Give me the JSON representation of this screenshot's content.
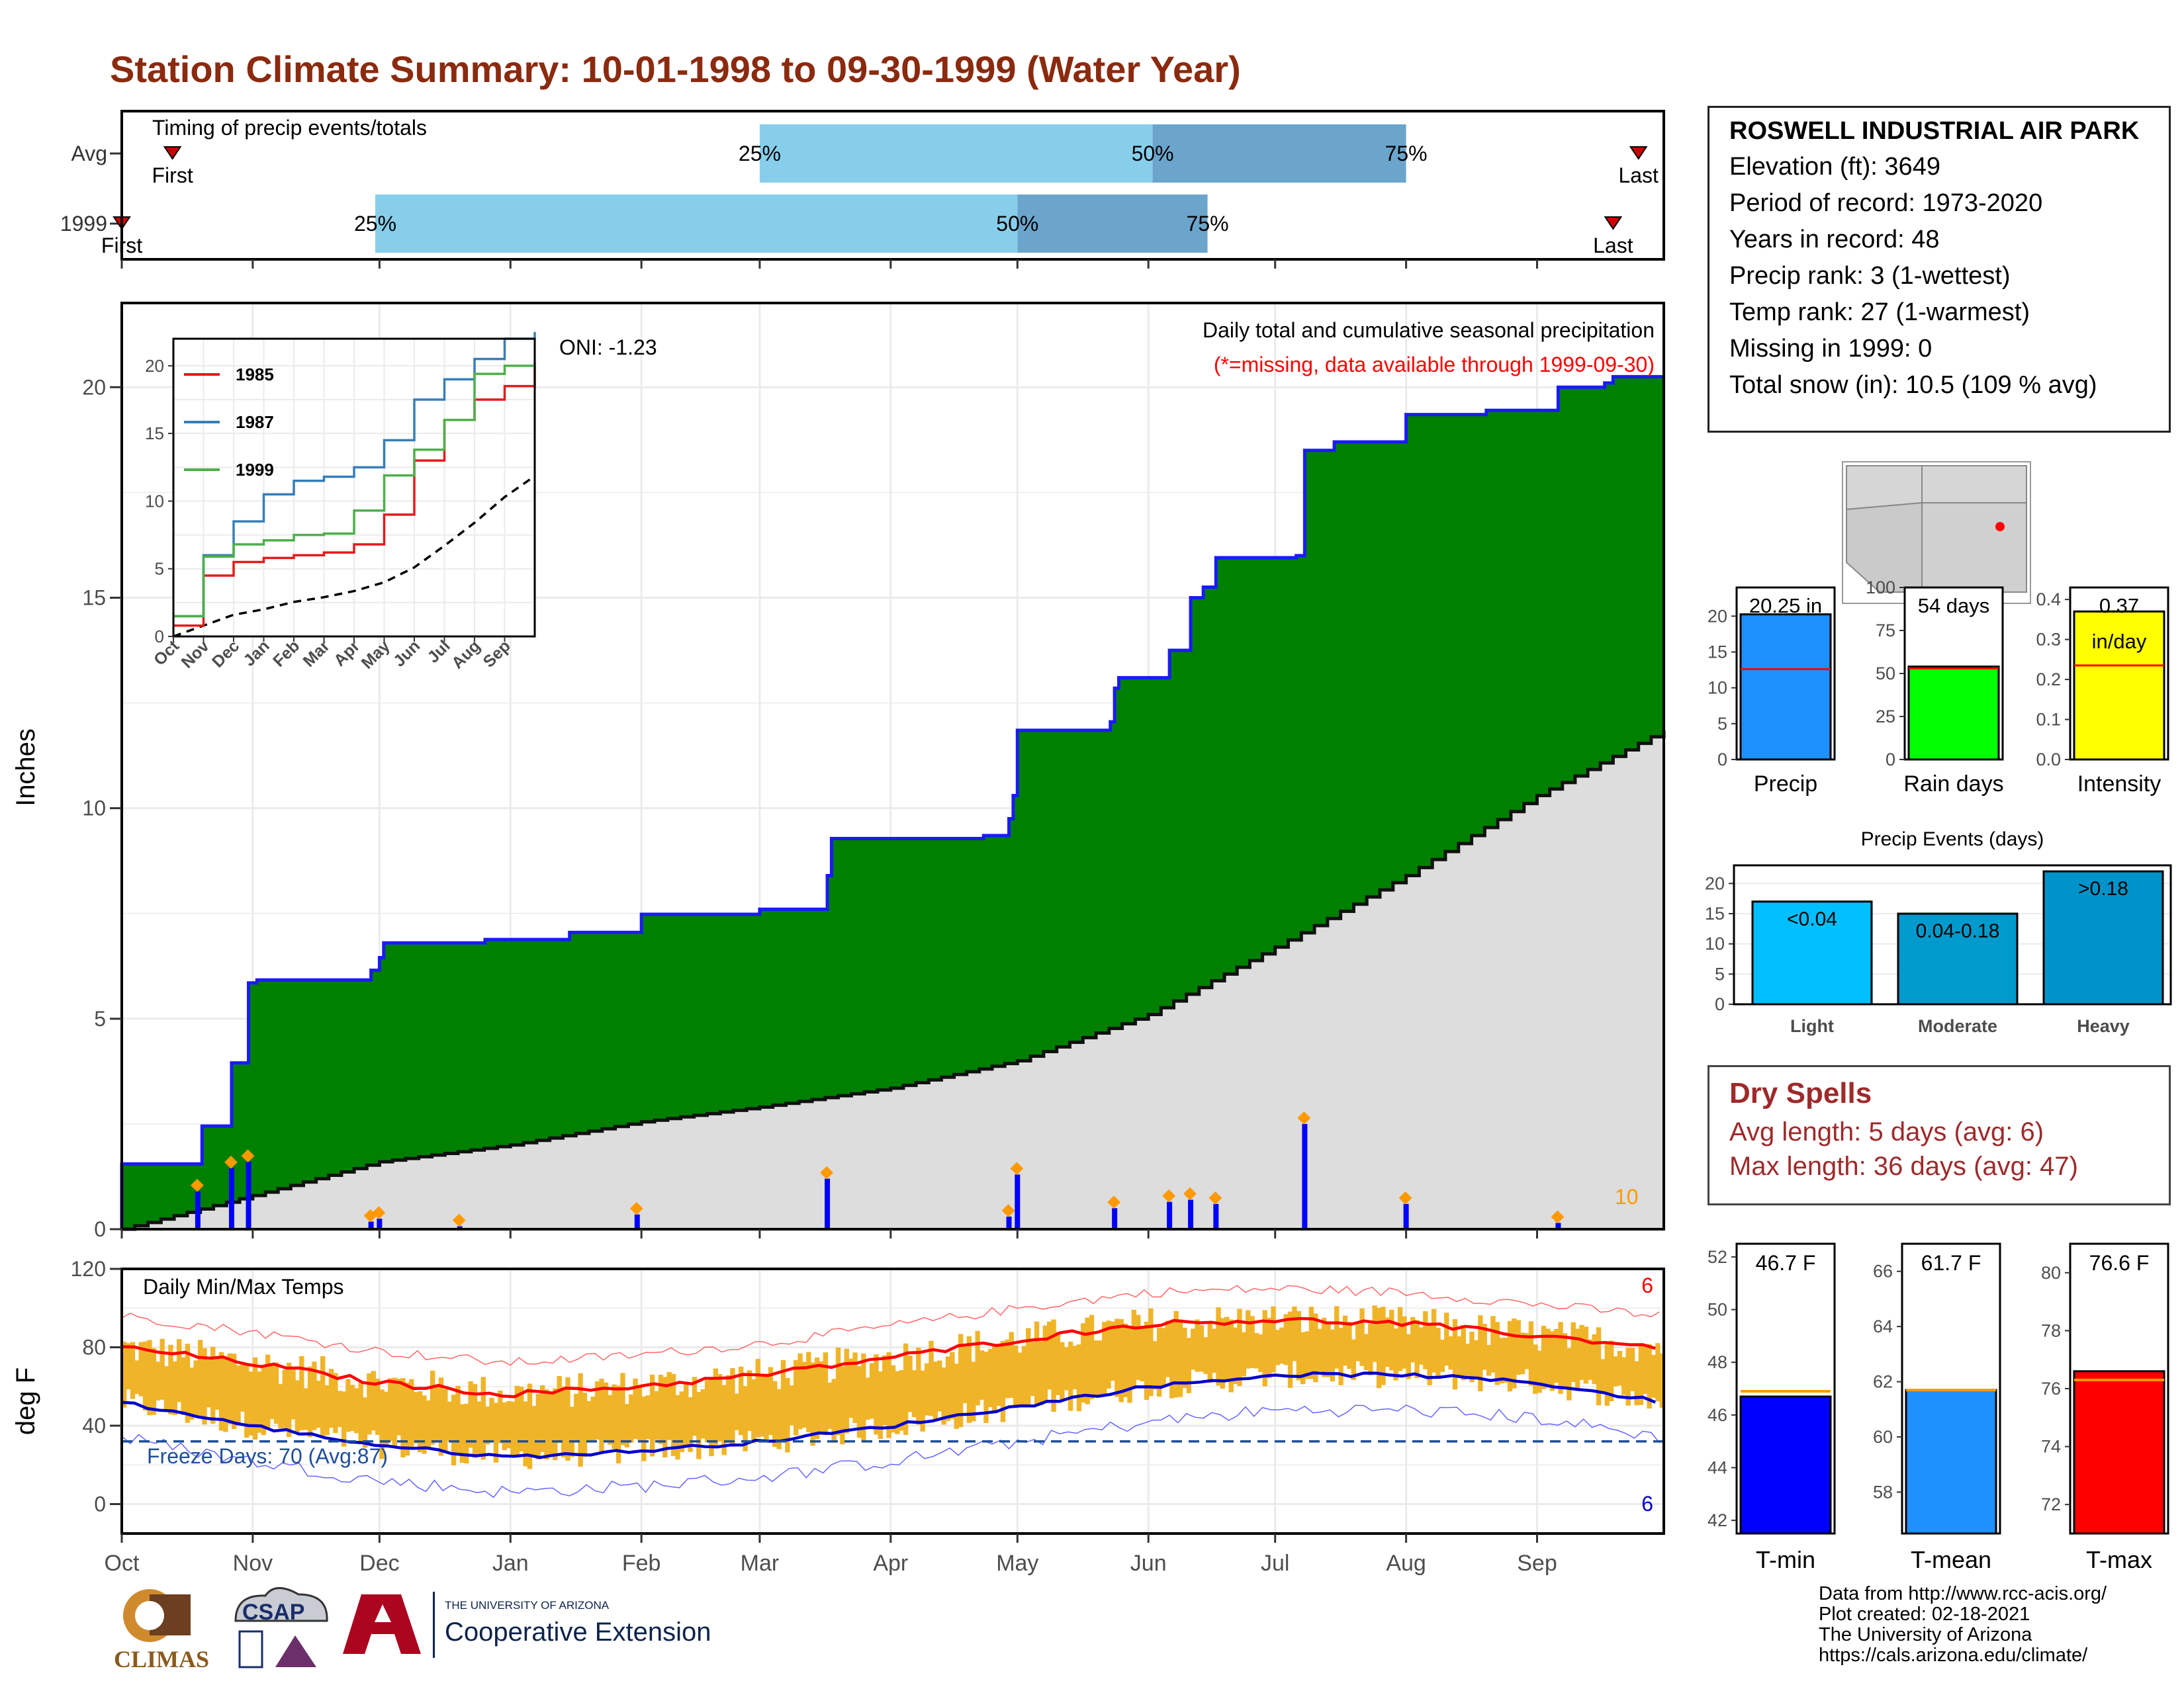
{
  "title": "Station Climate Summary: 10-01-1998 to 09-30-1999 (Water Year)",
  "station": {
    "name": "ROSWELL INDUSTRIAL AIR PARK",
    "elevation": "Elevation (ft): 3649",
    "period": "Period of record: 1973-2020",
    "years": "Years in record: 48",
    "precip_rank": "Precip rank: 3 (1-wettest)",
    "temp_rank": "Temp rank: 27 (1-warmest)",
    "missing": "Missing in 1999: 0",
    "snow": "Total snow (in): 10.5 (109 % avg)"
  },
  "dry_spells": {
    "title": "Dry Spells",
    "avg": "Avg length: 5 days (avg: 6)",
    "max": "Max length: 36 days (avg: 47)"
  },
  "credits": {
    "line1": "Data from http://www.rcc-acis.org/",
    "line2": "Plot created: 02-18-2021",
    "line3": "The University of Arizona",
    "line4": "https://cals.arizona.edu/climate/"
  },
  "logos": {
    "climas": "CLIMAS",
    "csap": "CSAP",
    "ua_small": "THE UNIVERSITY OF ARIZONA",
    "ua_big": "Cooperative Extension"
  },
  "colors": {
    "title": "#8b2a0e",
    "cumulative_fill": "#008000",
    "cumulative_line": "#1a1aff",
    "average_fill": "#dddddd",
    "daily_bar": "#0000ff",
    "temp_range": "#f0b429",
    "tmax_line": "#ff0000",
    "tmin_line": "#0000cc",
    "timing_light": "#87ceeb",
    "timing_dark": "#6ba5cc"
  },
  "chart_data": [
    {
      "id": "timing",
      "type": "bar",
      "title": "Timing of precip events/totals",
      "rows": [
        {
          "label": "Avg",
          "first": "10-13",
          "p25": "03-01",
          "p50": "06-02",
          "p75": "08-01",
          "last": "09-25"
        },
        {
          "label": "1999",
          "first": "10-01",
          "p25": "11-30",
          "p50": "05-01",
          "p75": "06-15",
          "last": "09-19"
        }
      ],
      "markers": {
        "first": "First",
        "last": "Last",
        "p25": "25%",
        "p50": "50%",
        "p75": "75%"
      }
    },
    {
      "id": "cumulative",
      "type": "area",
      "title": "Daily total and cumulative seasonal precipitation",
      "subtitle": "(*=missing, data available through 1999-09-30)",
      "annotation": "ONI: -1.23",
      "ylabel": "Inches",
      "ylim": [
        0,
        22
      ],
      "yticks": [
        0,
        5,
        10,
        15,
        20
      ],
      "xlim": [
        "10-01",
        "09-30"
      ],
      "xticks": [
        "Oct",
        "Nov",
        "Dec",
        "Jan",
        "Feb",
        "Mar",
        "Apr",
        "May",
        "Jun",
        "Jul",
        "Aug",
        "Sep"
      ],
      "corner_label": "10",
      "cumulative_steps": [
        {
          "date": "10-01",
          "value": 1.55
        },
        {
          "date": "10-20",
          "value": 2.45
        },
        {
          "date": "10-27",
          "value": 3.95
        },
        {
          "date": "10-31",
          "value": 5.85
        },
        {
          "date": "11-02",
          "value": 5.92
        },
        {
          "date": "11-29",
          "value": 6.15
        },
        {
          "date": "12-01",
          "value": 6.45
        },
        {
          "date": "12-02",
          "value": 6.8
        },
        {
          "date": "12-26",
          "value": 6.88
        },
        {
          "date": "01-15",
          "value": 7.05
        },
        {
          "date": "02-01",
          "value": 7.48
        },
        {
          "date": "03-01",
          "value": 7.6
        },
        {
          "date": "03-17",
          "value": 8.4
        },
        {
          "date": "03-18",
          "value": 9.28
        },
        {
          "date": "04-23",
          "value": 9.35
        },
        {
          "date": "04-29",
          "value": 9.75
        },
        {
          "date": "04-30",
          "value": 10.3
        },
        {
          "date": "05-01",
          "value": 11.85
        },
        {
          "date": "05-23",
          "value": 12.05
        },
        {
          "date": "05-24",
          "value": 12.85
        },
        {
          "date": "05-25",
          "value": 13.1
        },
        {
          "date": "06-06",
          "value": 13.75
        },
        {
          "date": "06-11",
          "value": 15.0
        },
        {
          "date": "06-14",
          "value": 15.25
        },
        {
          "date": "06-17",
          "value": 15.95
        },
        {
          "date": "07-06",
          "value": 16.0
        },
        {
          "date": "07-08",
          "value": 18.5
        },
        {
          "date": "07-15",
          "value": 18.7
        },
        {
          "date": "08-01",
          "value": 19.35
        },
        {
          "date": "08-20",
          "value": 19.45
        },
        {
          "date": "09-06",
          "value": 20.0
        },
        {
          "date": "09-17",
          "value": 20.1
        },
        {
          "date": "09-19",
          "value": 20.25
        }
      ],
      "average_curve": [
        {
          "date": "10-01",
          "value": 0.0
        },
        {
          "date": "11-01",
          "value": 0.8
        },
        {
          "date": "12-01",
          "value": 1.6
        },
        {
          "date": "01-01",
          "value": 2.0
        },
        {
          "date": "02-01",
          "value": 2.55
        },
        {
          "date": "03-01",
          "value": 2.9
        },
        {
          "date": "04-01",
          "value": 3.35
        },
        {
          "date": "05-01",
          "value": 4.0
        },
        {
          "date": "06-01",
          "value": 5.1
        },
        {
          "date": "07-01",
          "value": 6.7
        },
        {
          "date": "08-01",
          "value": 8.4
        },
        {
          "date": "09-01",
          "value": 10.3
        },
        {
          "date": "09-30",
          "value": 11.85
        }
      ],
      "daily_bars": [
        {
          "date": "10-19",
          "value": 0.9
        },
        {
          "date": "10-27",
          "value": 1.45
        },
        {
          "date": "10-31",
          "value": 1.6
        },
        {
          "date": "11-29",
          "value": 0.18
        },
        {
          "date": "12-01",
          "value": 0.25
        },
        {
          "date": "12-20",
          "value": 0.07
        },
        {
          "date": "01-31",
          "value": 0.35
        },
        {
          "date": "03-17",
          "value": 1.2
        },
        {
          "date": "04-29",
          "value": 0.3
        },
        {
          "date": "05-01",
          "value": 1.3
        },
        {
          "date": "05-24",
          "value": 0.5
        },
        {
          "date": "06-06",
          "value": 0.65
        },
        {
          "date": "06-11",
          "value": 0.7
        },
        {
          "date": "06-17",
          "value": 0.6
        },
        {
          "date": "07-08",
          "value": 2.5
        },
        {
          "date": "08-01",
          "value": 0.6
        },
        {
          "date": "09-06",
          "value": 0.15
        }
      ],
      "inset": {
        "xticks": [
          "Oct",
          "Nov",
          "Dec",
          "Jan",
          "Feb",
          "Mar",
          "Apr",
          "May",
          "Jun",
          "Jul",
          "Aug",
          "Sep"
        ],
        "ylim": [
          0,
          22
        ],
        "yticks": [
          0,
          5,
          10,
          15,
          20
        ],
        "series": [
          {
            "name": "1985",
            "color": "#e41a1c",
            "values": [
              0.8,
              4.5,
              5.5,
              5.8,
              6.0,
              6.2,
              6.8,
              9.0,
              13.0,
              16.0,
              17.5,
              18.5,
              20.0
            ]
          },
          {
            "name": "1987",
            "color": "#377eb8",
            "values": [
              1.5,
              6.0,
              8.5,
              10.5,
              11.5,
              11.8,
              12.5,
              14.5,
              17.5,
              19.0,
              20.5,
              22.0,
              22.5
            ]
          },
          {
            "name": "1999",
            "color": "#4daf4a",
            "values": [
              1.5,
              5.9,
              6.8,
              7.1,
              7.5,
              7.6,
              9.3,
              11.9,
              13.8,
              16.0,
              19.4,
              20.0,
              20.3
            ]
          }
        ],
        "average": [
          0.0,
          0.8,
          1.6,
          2.0,
          2.55,
          2.9,
          3.35,
          4.0,
          5.1,
          6.7,
          8.4,
          10.3,
          11.85
        ]
      }
    },
    {
      "id": "temps",
      "type": "line",
      "title": "Daily Min/Max Temps",
      "ylabel": "deg F",
      "ylim": [
        -15,
        120
      ],
      "yticks": [
        0,
        40,
        80,
        120
      ],
      "freeze_label": "Freeze Days: 70 (Avg:87)",
      "freeze_line": 32,
      "record_high_count": "6",
      "record_low_count": "6",
      "xticks": [
        "Oct",
        "Nov",
        "Dec",
        "Jan",
        "Feb",
        "Mar",
        "Apr",
        "May",
        "Jun",
        "Jul",
        "Aug",
        "Sep"
      ],
      "avg_tmax": [
        80,
        72,
        62,
        56,
        60,
        66,
        75,
        84,
        92,
        94,
        92,
        86,
        80
      ],
      "avg_tmin": [
        52,
        40,
        30,
        24,
        27,
        32,
        40,
        50,
        60,
        66,
        66,
        62,
        52
      ]
    },
    {
      "id": "precip_summary",
      "type": "bar",
      "categories": [
        "Precip",
        "Rain days",
        "Intensity"
      ],
      "values": [
        20.25,
        54,
        0.37
      ],
      "averages": [
        12.6,
        53,
        0.235
      ],
      "labels": [
        "20.25 in",
        "54 days",
        "0.37"
      ],
      "unit_label": "in/day",
      "ylims": [
        [
          0,
          24
        ],
        [
          0,
          100
        ],
        [
          0,
          0.43
        ]
      ],
      "yticks": [
        [
          0,
          5,
          10,
          15,
          20
        ],
        [
          0,
          25,
          50,
          75,
          100
        ],
        [
          0.0,
          0.1,
          0.2,
          0.3,
          0.4
        ]
      ],
      "colors": [
        "#1e90ff",
        "#00ff00",
        "#ffff00"
      ]
    },
    {
      "id": "precip_events",
      "type": "bar",
      "title": "Precip Events (days)",
      "categories": [
        "Light",
        "Moderate",
        "Heavy"
      ],
      "values": [
        17,
        15,
        22
      ],
      "labels": [
        "<0.04",
        "0.04-0.18",
        ">0.18"
      ],
      "ylim": [
        0,
        23
      ],
      "yticks": [
        0,
        5,
        10,
        15,
        20
      ],
      "colors": [
        "#00bfff",
        "#009acd",
        "#0093c9"
      ]
    },
    {
      "id": "temp_summary",
      "type": "bar",
      "categories": [
        "T-min",
        "T-mean",
        "T-max"
      ],
      "values": [
        46.7,
        61.7,
        76.6
      ],
      "averages": [
        46.9,
        61.7,
        76.3
      ],
      "labels": [
        "46.7 F",
        "61.7 F",
        "76.6 F"
      ],
      "ylims": [
        [
          41.5,
          52.5
        ],
        [
          56.5,
          67.0
        ],
        [
          71.0,
          81.0
        ]
      ],
      "yticks": [
        [
          42,
          44,
          46,
          48,
          50,
          52
        ],
        [
          58,
          60,
          62,
          64,
          66
        ],
        [
          72,
          74,
          76,
          78,
          80
        ]
      ],
      "colors": [
        "#0000ff",
        "#1e90ff",
        "#ff0000"
      ]
    }
  ]
}
